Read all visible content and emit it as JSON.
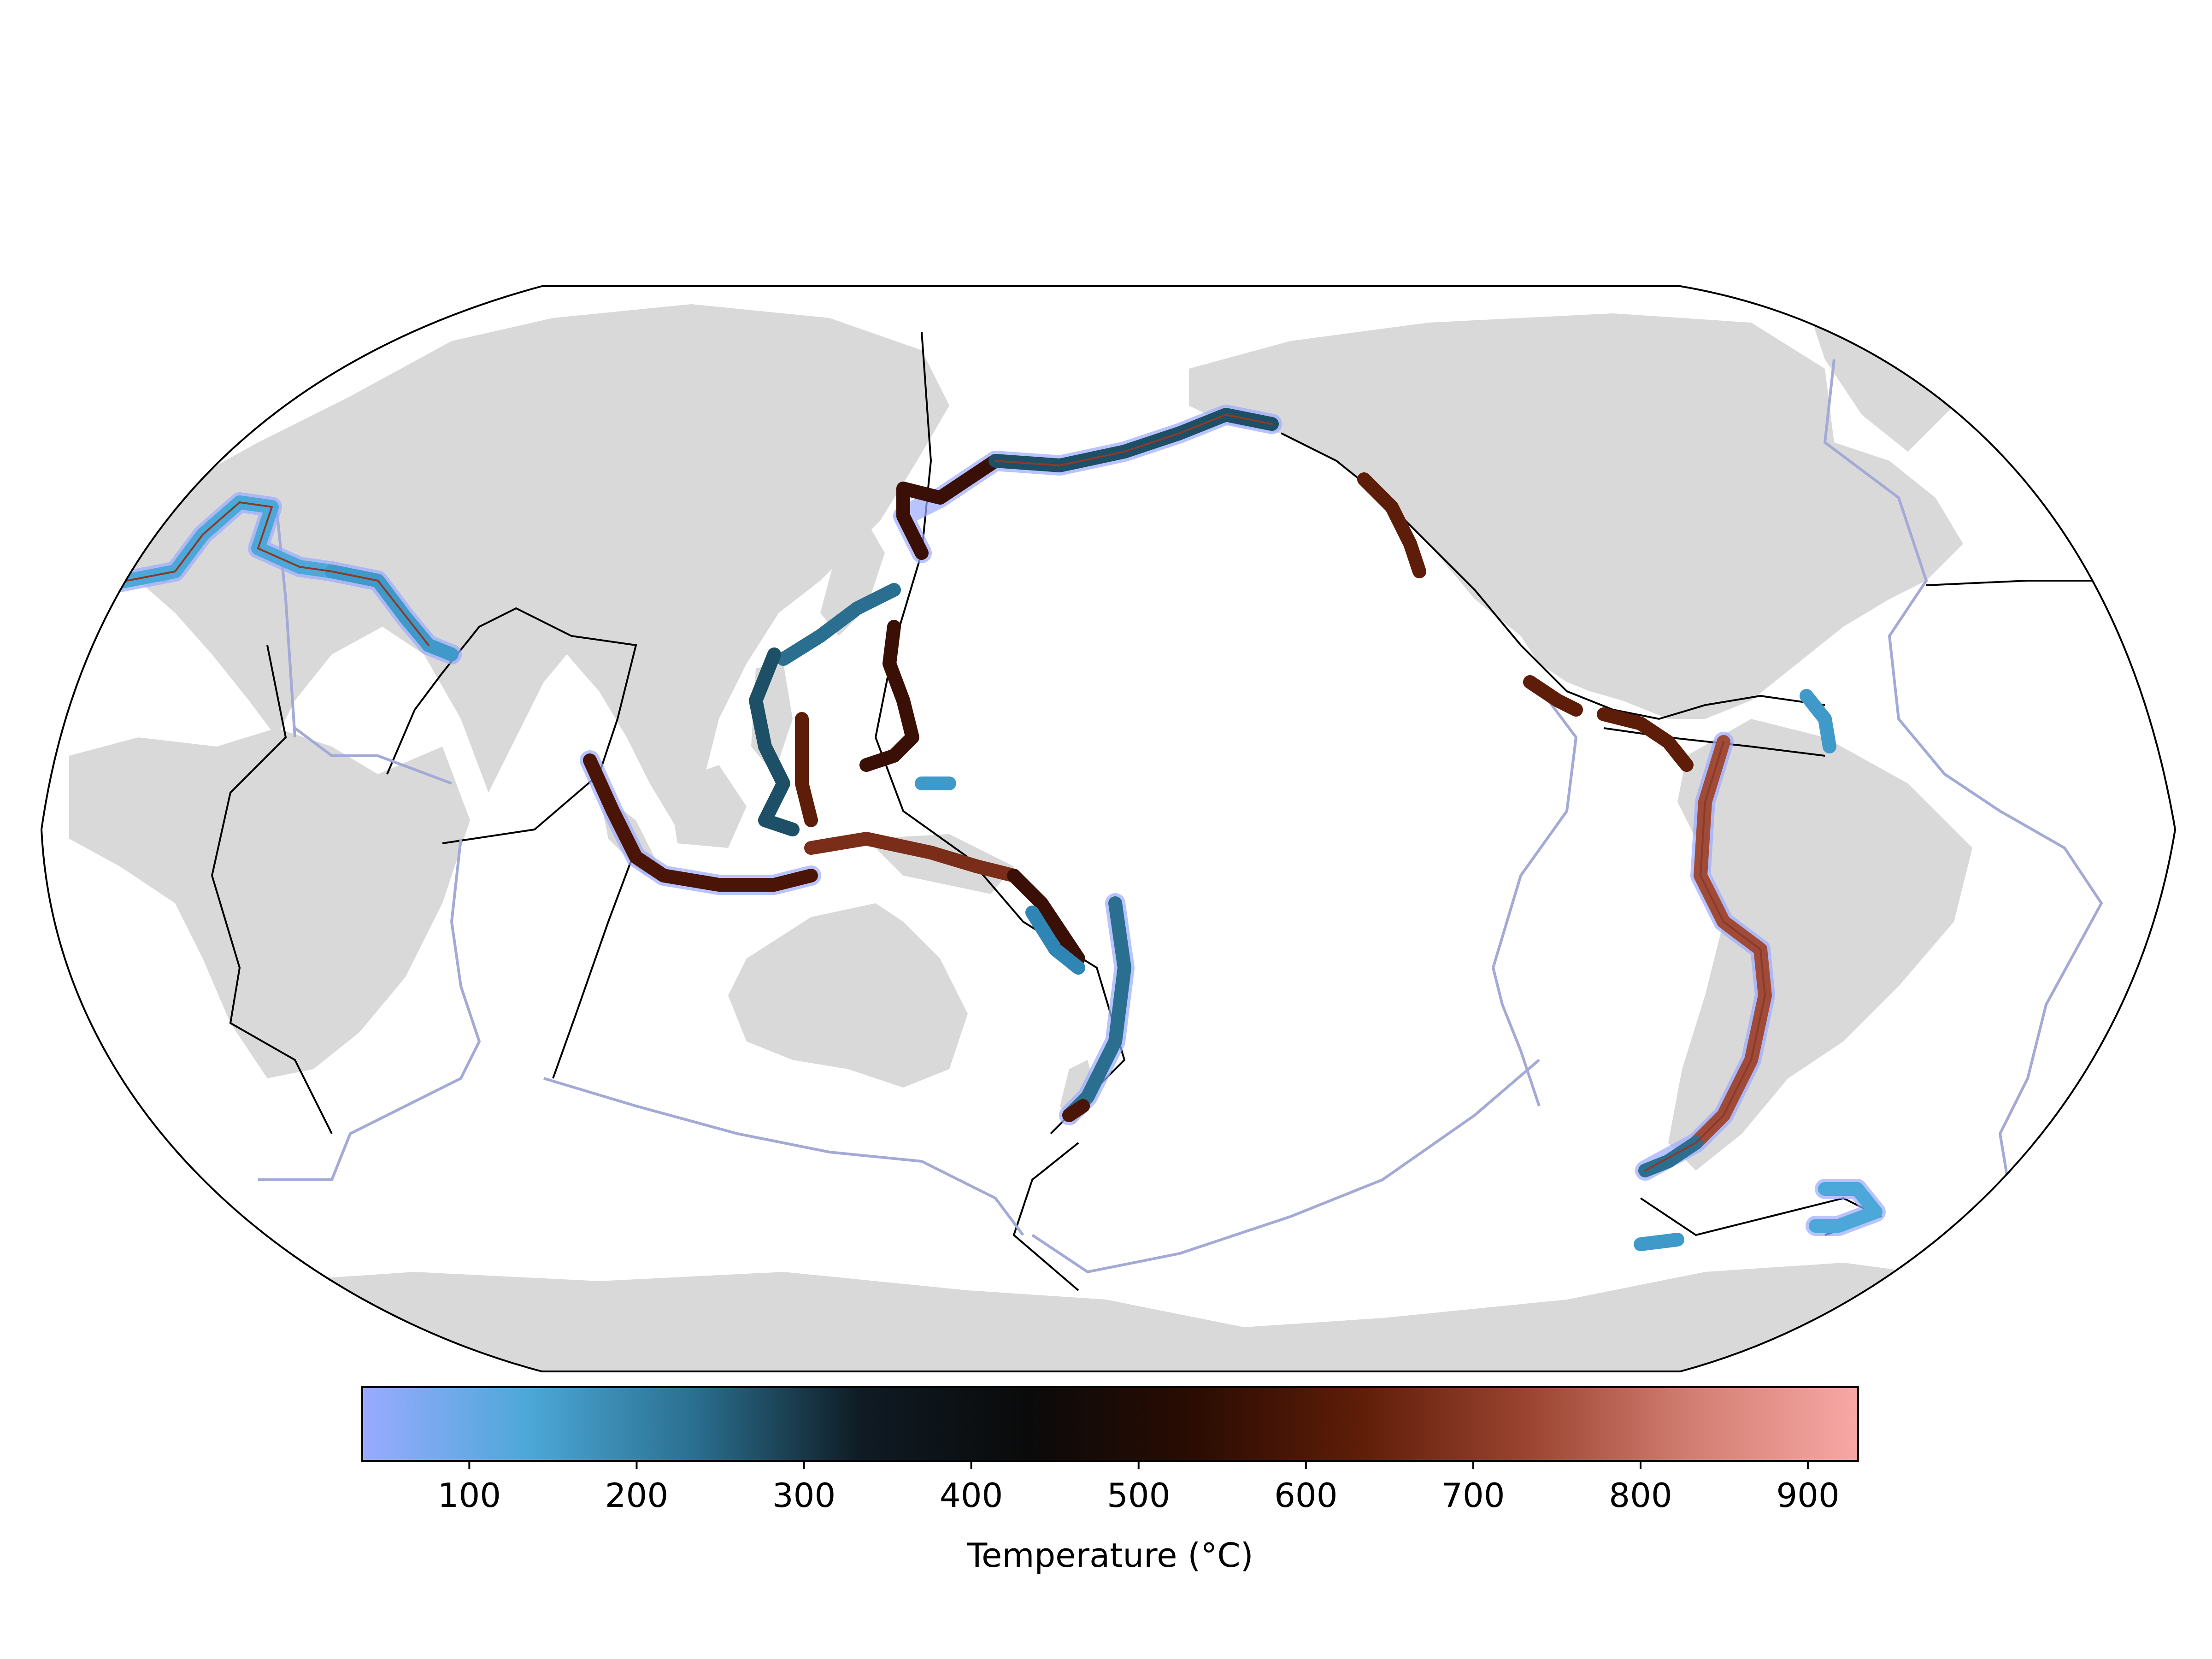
{
  "chart_data": {
    "type": "map",
    "projection": "Robinson (Pacific-centred)",
    "background": {
      "land": "#d9d9d9",
      "ocean": "#ffffff"
    },
    "layers": [
      {
        "name": "plate boundaries",
        "color": "#000000"
      },
      {
        "name": "ridges",
        "color": "#a3aad6"
      },
      {
        "name": "subduction zones (scatter, coloured by temperature)"
      }
    ],
    "colorbar": {
      "label": "Temperature (°C)",
      "range": [
        36,
        930
      ],
      "ticks": [
        100,
        200,
        300,
        400,
        500,
        600,
        700,
        800,
        900
      ],
      "colormap": [
        "#9aaaff",
        "#4ca8d8",
        "#2a6f8f",
        "#0f1b24",
        "#0a0a0a",
        "#2a0c02",
        "#5e1d08",
        "#9a4330",
        "#d27e72",
        "#f9a8a6"
      ]
    }
  }
}
